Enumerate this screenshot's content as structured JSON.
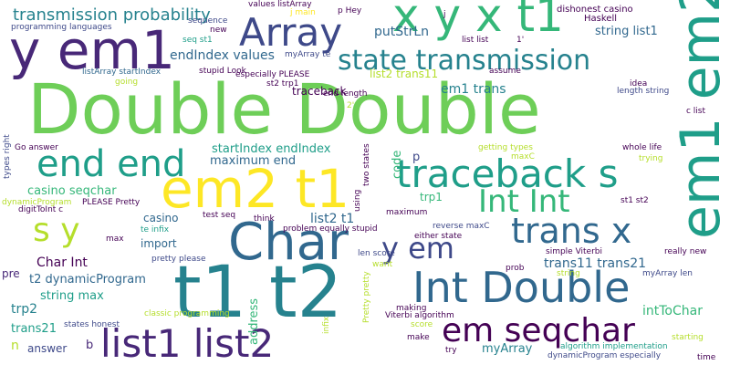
{
  "background": "#ffffff",
  "palette": {
    "dark_purple": "#440154",
    "indigo": "#482878",
    "blue": "#3e4989",
    "steel": "#31688e",
    "teal_blue": "#26828e",
    "teal": "#1f9e89",
    "green_teal": "#35b779",
    "green": "#6ece58",
    "lime": "#b5de2b",
    "yellow": "#fde725"
  },
  "words": [
    {
      "text": "Double Double",
      "color": "#6ece58"
    },
    {
      "text": "t1 t2",
      "color": "#26828e"
    },
    {
      "text": "Char",
      "color": "#31688e"
    },
    {
      "text": "em2 t1",
      "color": "#fde725"
    },
    {
      "text": "y em1",
      "color": "#482878"
    },
    {
      "text": "x y x t1",
      "color": "#35b779"
    },
    {
      "text": "em1 em2",
      "color": "#1f9e89"
    },
    {
      "text": "Int Double",
      "color": "#31688e"
    },
    {
      "text": "Array",
      "color": "#3e4989"
    },
    {
      "text": "traceback s",
      "color": "#1f9e89"
    },
    {
      "text": "end end",
      "color": "#1f9e89"
    },
    {
      "text": "list1 list2",
      "color": "#482878"
    },
    {
      "text": "em seqchar",
      "color": "#440154"
    },
    {
      "text": "state transmission",
      "color": "#26828e"
    },
    {
      "text": "trans x",
      "color": "#31688e"
    },
    {
      "text": "Int Int",
      "color": "#35b779"
    },
    {
      "text": "s y",
      "color": "#b5de2b"
    },
    {
      "text": "y em",
      "color": "#3e4989"
    },
    {
      "text": "transmission probability",
      "color": "#26828e"
    },
    {
      "text": "endIndex values",
      "color": "#31688e"
    },
    {
      "text": "putStrLn",
      "color": "#31688e"
    },
    {
      "text": "em1 trans",
      "color": "#26828e"
    },
    {
      "text": "string list1",
      "color": "#31688e"
    },
    {
      "text": "startIndex endIndex",
      "color": "#1f9e89"
    },
    {
      "text": "maximum end",
      "color": "#31688e"
    },
    {
      "text": "casino seqchar",
      "color": "#35b779"
    },
    {
      "text": "list2 t1",
      "color": "#31688e"
    },
    {
      "text": "Char Int",
      "color": "#440154"
    },
    {
      "text": "trans11 trans21",
      "color": "#31688e"
    },
    {
      "text": "t2 dynamicProgram",
      "color": "#31688e"
    },
    {
      "text": "string max",
      "color": "#1f9e89"
    },
    {
      "text": "trp2",
      "color": "#26828e"
    },
    {
      "text": "trans21",
      "color": "#1f9e89"
    },
    {
      "text": "intToChar",
      "color": "#35b779"
    },
    {
      "text": "myArray",
      "color": "#26828e"
    },
    {
      "text": "address",
      "color": "#35b779"
    },
    {
      "text": "code",
      "color": "#35b779"
    },
    {
      "text": "import",
      "color": "#31688e"
    },
    {
      "text": "trp1",
      "color": "#35b779"
    },
    {
      "text": "casino",
      "color": "#31688e"
    },
    {
      "text": "answer",
      "color": "#3e4989"
    },
    {
      "text": "pre",
      "color": "#482878"
    },
    {
      "text": "n",
      "color": "#b5de2b"
    },
    {
      "text": "b",
      "color": "#482878"
    },
    {
      "text": "p",
      "color": "#3e4989"
    },
    {
      "text": "traceback",
      "color": "#440154"
    },
    {
      "text": "list2 trans11",
      "color": "#b5de2b"
    },
    {
      "text": "dishonest casino",
      "color": "#440154"
    },
    {
      "text": "Haskell",
      "color": "#440154"
    },
    {
      "text": "values listArray",
      "color": "#440154"
    },
    {
      "text": "j main",
      "color": "#fde725"
    },
    {
      "text": "p Hey",
      "color": "#440154"
    },
    {
      "text": "programming languages",
      "color": "#3e4989"
    },
    {
      "text": "sequence",
      "color": "#3e4989"
    },
    {
      "text": "new",
      "color": "#440154"
    },
    {
      "text": "seq st1",
      "color": "#1f9e89"
    },
    {
      "text": "listArray startIndex",
      "color": "#31688e"
    },
    {
      "text": "going",
      "color": "#b5de2b"
    },
    {
      "text": "stupid Look",
      "color": "#440154"
    },
    {
      "text": "especially PLEASE",
      "color": "#440154"
    },
    {
      "text": "myArray te",
      "color": "#3e4989"
    },
    {
      "text": "st2 trp1",
      "color": "#440154"
    },
    {
      "text": "end length",
      "color": "#440154"
    },
    {
      "text": "list list",
      "color": "#440154"
    },
    {
      "text": "1'",
      "color": "#440154"
    },
    {
      "text": "2'",
      "color": "#b5de2b"
    },
    {
      "text": "j",
      "color": "#440154"
    },
    {
      "text": "assume",
      "color": "#440154"
    },
    {
      "text": "idea",
      "color": "#440154"
    },
    {
      "text": "length string",
      "color": "#3e4989"
    },
    {
      "text": "c list",
      "color": "#440154"
    },
    {
      "text": "whole life",
      "color": "#440154"
    },
    {
      "text": "trying",
      "color": "#b5de2b"
    },
    {
      "text": "getting types",
      "color": "#b5de2b"
    },
    {
      "text": "maxC",
      "color": "#b5de2b"
    },
    {
      "text": "st1 st2",
      "color": "#440154"
    },
    {
      "text": "really new",
      "color": "#440154"
    },
    {
      "text": "simple Viterbi",
      "color": "#440154"
    },
    {
      "text": "myArray len",
      "color": "#3e4989"
    },
    {
      "text": "len score",
      "color": "#3e4989"
    },
    {
      "text": "want",
      "color": "#b5de2b"
    },
    {
      "text": "prob",
      "color": "#440154"
    },
    {
      "text": "string",
      "color": "#b5de2b"
    },
    {
      "text": "starting",
      "color": "#b5de2b"
    },
    {
      "text": "algorithm implementation",
      "color": "#1f9e89"
    },
    {
      "text": "dynamicProgram especially",
      "color": "#3e4989"
    },
    {
      "text": "time",
      "color": "#440154"
    },
    {
      "text": "Viterbi algorithm",
      "color": "#440154"
    },
    {
      "text": "making",
      "color": "#440154"
    },
    {
      "text": "score",
      "color": "#b5de2b"
    },
    {
      "text": "make",
      "color": "#440154"
    },
    {
      "text": "try",
      "color": "#440154"
    },
    {
      "text": "reverse maxC",
      "color": "#3e4989"
    },
    {
      "text": "either state",
      "color": "#440154"
    },
    {
      "text": "problem equally stupid",
      "color": "#440154"
    },
    {
      "text": "maximum",
      "color": "#440154"
    },
    {
      "text": "think",
      "color": "#440154"
    },
    {
      "text": "test seq",
      "color": "#440154"
    },
    {
      "text": "pretty please",
      "color": "#3e4989"
    },
    {
      "text": "te infix",
      "color": "#1f9e89"
    },
    {
      "text": "max",
      "color": "#440154"
    },
    {
      "text": "classic programming",
      "color": "#b5de2b"
    },
    {
      "text": "states honest",
      "color": "#3e4989"
    },
    {
      "text": "Go answer",
      "color": "#440154"
    },
    {
      "text": "digitToInt c",
      "color": "#440154"
    },
    {
      "text": "PLEASE Pretty",
      "color": "#440154"
    },
    {
      "text": "dynamicProgram",
      "color": "#b5de2b"
    },
    {
      "text": "types right",
      "color": "#3e4989"
    },
    {
      "text": "two states",
      "color": "#440154"
    },
    {
      "text": "using",
      "color": "#440154"
    },
    {
      "text": "Pretty pretty",
      "color": "#b5de2b"
    },
    {
      "text": "infix",
      "color": "#b5de2b"
    }
  ]
}
